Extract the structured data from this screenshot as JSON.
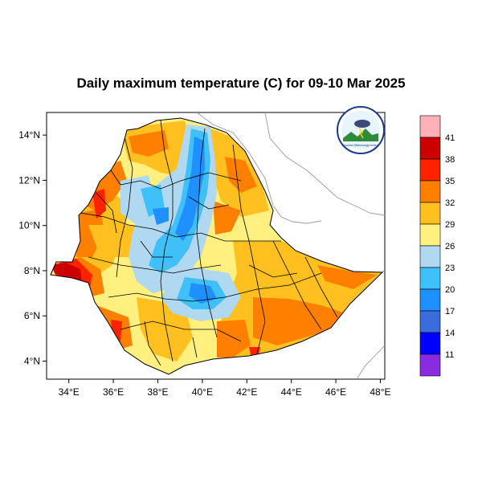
{
  "title": "Daily maximum temperature (C) for 09-10 Mar 2025",
  "map": {
    "lon_range": [
      33,
      48.2
    ],
    "lat_range": [
      3.2,
      15.0
    ],
    "x_ticks": [
      {
        "value": 34,
        "label": "34°E"
      },
      {
        "value": 36,
        "label": "36°E"
      },
      {
        "value": 38,
        "label": "38°E"
      },
      {
        "value": 40,
        "label": "40°E"
      },
      {
        "value": 42,
        "label": "42°E"
      },
      {
        "value": 44,
        "label": "44°E"
      },
      {
        "value": 46,
        "label": "46°E"
      },
      {
        "value": 48,
        "label": "48°E"
      }
    ],
    "y_ticks": [
      {
        "value": 14,
        "label": "14°N"
      },
      {
        "value": 12,
        "label": "12°N"
      },
      {
        "value": 10,
        "label": "10°N"
      },
      {
        "value": 8,
        "label": "8°N"
      },
      {
        "value": 6,
        "label": "6°N"
      },
      {
        "value": 4,
        "label": "4°N"
      }
    ]
  },
  "colorbar": {
    "levels": [
      "41",
      "38",
      "35",
      "32",
      "29",
      "26",
      "23",
      "20",
      "17",
      "14",
      "11"
    ],
    "colors": [
      "#ffb0b8",
      "#cc0000",
      "#ff2200",
      "#ff8000",
      "#ffc020",
      "#fff080",
      "#b0d8f0",
      "#40c0f8",
      "#1e90ff",
      "#3a6cdc",
      "#0000ff",
      "#8a2be2"
    ]
  },
  "palette": {
    "t29_32": "#ffc020",
    "t26_29": "#fff080",
    "t23_26": "#b0d8f0",
    "t20_23": "#40c0f8",
    "t17_20": "#1e90ff",
    "t32_35": "#ff8000",
    "t35_38": "#ff2200",
    "t38_41": "#cc0000"
  },
  "logo": {
    "top_text": "የኢትዮጵያ ሚቲዎሮሎጂ ኢንስቲትዩት",
    "bottom_text": "Ethiopian Meteorology Institute"
  }
}
